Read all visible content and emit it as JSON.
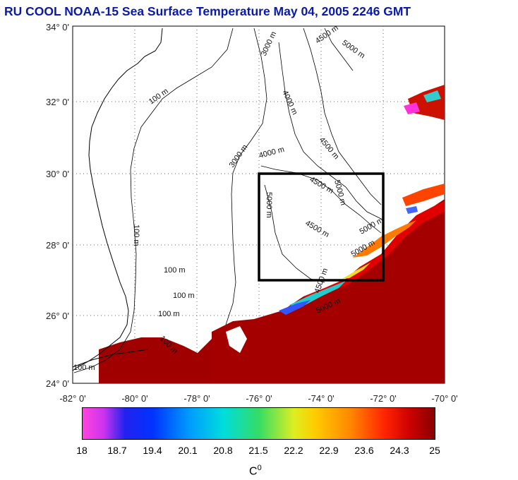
{
  "title": "RU COOL  NOAA-15 Sea Surface Temperature May 04, 2005 2246 GMT",
  "lat_labels": [
    "34° 0'",
    "32° 0'",
    "30° 0'",
    "28° 0'",
    "26° 0'",
    "24° 0'"
  ],
  "lon_labels": [
    "-82° 0'",
    "-80° 0'",
    "-78° 0'",
    "-76° 0'",
    "-74° 0'",
    "-72° 0'",
    "-70° 0'"
  ],
  "isobath_labels": [
    "100 m",
    "100 m",
    "100 m",
    "100 m",
    "100 m",
    "100 m",
    "100 m",
    "3000 m",
    "3000 m",
    "4000 m",
    "4000 m",
    "4500 m",
    "5000 m",
    "5000 m",
    "4500 m",
    "4500 m",
    "5000 m",
    "4500 m",
    "5000 m",
    "5000 m",
    "4500 m",
    "5000 m"
  ],
  "colorbar": {
    "ticks": [
      "18",
      "18.7",
      "19.4",
      "20.1",
      "20.8",
      "21.5",
      "22.2",
      "22.9",
      "23.6",
      "24.3",
      "25"
    ],
    "unit": "C",
    "unit_sup": "0"
  }
}
